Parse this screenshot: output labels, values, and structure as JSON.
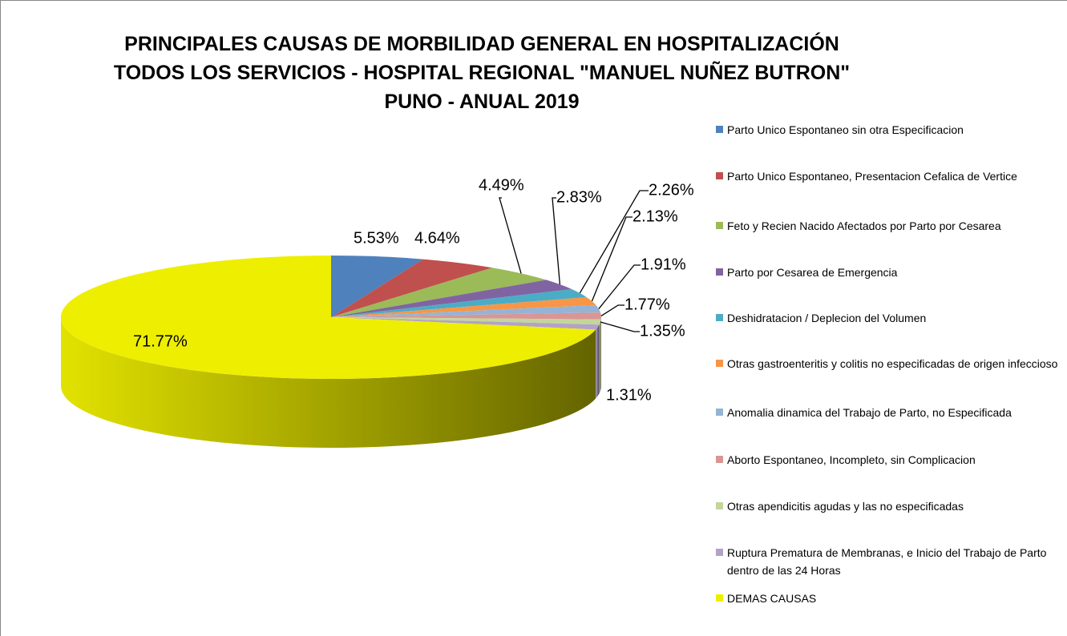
{
  "chart_data": {
    "type": "pie",
    "title": "PRINCIPALES CAUSAS DE MORBILIDAD GENERAL EN HOSPITALIZACIÓN TODOS LOS SERVICIOS - HOSPITAL REGIONAL \"MANUEL NUÑEZ BUTRON\" PUNO - ANUAL 2019",
    "categories": [
      "Parto Unico Espontaneo  sin otra Especificacion",
      "Parto Unico Espontaneo, Presentacion Cefalica de Vertice",
      "Feto y Recien Nacido Afectados por Parto por Cesarea",
      "Parto por Cesarea de Emergencia",
      "Deshidratacion / Deplecion del Volumen",
      "Otras gastroenteritis y colitis no especificadas de origen infeccioso",
      "Anomalia dinamica del Trabajo de Parto, no Especificada",
      "Aborto Espontaneo, Incompleto, sin Complicacion",
      "Otras apendicitis agudas y las no especificadas",
      "Ruptura Prematura de Membranas, e Inicio del Trabajo de Parto dentro de las 24 Horas",
      "DEMAS CAUSAS"
    ],
    "values": [
      5.53,
      4.64,
      4.49,
      2.83,
      2.26,
      2.13,
      1.91,
      1.77,
      1.35,
      1.31,
      71.77
    ],
    "value_labels": [
      "5.53%",
      "4.64%",
      "4.49%",
      "2.83%",
      "2.26%",
      "2.13%",
      "1.91%",
      "1.77%",
      "1.35%",
      "1.31%",
      "71.77%"
    ],
    "colors": [
      "#4f81bd",
      "#c0504d",
      "#9bbb59",
      "#8064a2",
      "#4bacc6",
      "#f79646",
      "#95b3d7",
      "#d99694",
      "#c3d69b",
      "#b3a2c7",
      "#eeee00"
    ],
    "legend": "right"
  }
}
